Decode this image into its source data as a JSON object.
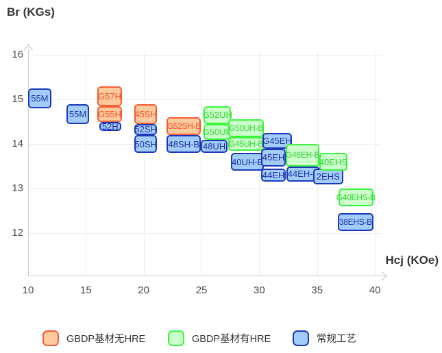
{
  "axis": {
    "y_title": "Br (KGs)",
    "x_title": "Hcj (KOe)"
  },
  "legend": {
    "items": [
      {
        "label": "GBDP基材无HRE",
        "series": "gbdp_no_hre"
      },
      {
        "label": "GBDP基材有HRE",
        "series": "gbdp_hre"
      },
      {
        "label": "常规工艺",
        "series": "conventional"
      }
    ]
  },
  "chart_data": {
    "type": "scatter",
    "title": "",
    "xlabel": "Hcj (KOe)",
    "ylabel": "Br (KGs)",
    "xlim": [
      10,
      41
    ],
    "ylim": [
      12,
      16
    ],
    "x_ticks": [
      10,
      15,
      20,
      25,
      30,
      35,
      40
    ],
    "y_ticks": [
      16,
      15,
      14,
      13,
      12
    ],
    "grid": true,
    "legend_position": "bottom",
    "series": [
      {
        "id": "gbdp_no_hre",
        "name": "GBDP基材无HRE",
        "fill": "#fbcb9d",
        "border": "#f75c35",
        "text": "#f94f27"
      },
      {
        "id": "gbdp_hre",
        "name": "GBDP基材有HRE",
        "fill": "#ccffcc",
        "border": "#3df43d",
        "text": "#2fd42f"
      },
      {
        "id": "conventional",
        "name": "常规工艺",
        "fill": "#a2cdfb",
        "border": "#1b38bd",
        "text": "#1e2e9e"
      }
    ],
    "boxes": [
      {
        "label": "55M",
        "series": "conventional",
        "hcj": [
          10.0,
          12.0
        ],
        "br": [
          14.8,
          15.25
        ]
      },
      {
        "label": "55M",
        "series": "conventional",
        "hcj": [
          13.3,
          15.3
        ],
        "br": [
          14.45,
          14.9
        ]
      },
      {
        "label": "G57H",
        "series": "gbdp_no_hre",
        "hcj": [
          16.0,
          18.1
        ],
        "br": [
          14.85,
          15.3
        ]
      },
      {
        "label": "G55H",
        "series": "gbdp_no_hre",
        "hcj": [
          16.0,
          18.1
        ],
        "br": [
          14.5,
          14.85
        ]
      },
      {
        "label": "52H",
        "series": "conventional",
        "hcj": [
          16.15,
          18.05
        ],
        "br": [
          14.3,
          14.5
        ]
      },
      {
        "label": "45SH",
        "series": "gbdp_no_hre",
        "hcj": [
          19.2,
          21.15
        ],
        "br": [
          14.45,
          14.9
        ]
      },
      {
        "label": "52SH",
        "series": "conventional",
        "hcj": [
          19.2,
          21.15
        ],
        "br": [
          14.2,
          14.45
        ]
      },
      {
        "label": "50SH",
        "series": "conventional",
        "hcj": [
          19.2,
          21.15
        ],
        "br": [
          13.8,
          14.2
        ]
      },
      {
        "label": "G52SH-B",
        "series": "gbdp_no_hre",
        "hcj": [
          22.0,
          24.95
        ],
        "br": [
          14.2,
          14.6
        ]
      },
      {
        "label": "48SH-B",
        "series": "conventional",
        "hcj": [
          22.0,
          24.95
        ],
        "br": [
          13.8,
          14.2
        ]
      },
      {
        "label": "G52UH",
        "series": "gbdp_hre",
        "hcj": [
          25.2,
          27.55
        ],
        "br": [
          14.45,
          14.85
        ]
      },
      {
        "label": "G50UH",
        "series": "gbdp_hre",
        "hcj": [
          25.2,
          27.55
        ],
        "br": [
          14.1,
          14.45
        ]
      },
      {
        "label": "48UH",
        "series": "conventional",
        "hcj": [
          24.95,
          27.25
        ],
        "br": [
          13.8,
          14.1
        ]
      },
      {
        "label": "G50UH-B",
        "series": "gbdp_hre",
        "hcj": [
          27.3,
          30.4
        ],
        "br": [
          14.15,
          14.55
        ]
      },
      {
        "label": "G45UH-B",
        "series": "gbdp_hre",
        "hcj": [
          27.3,
          30.4
        ],
        "br": [
          13.85,
          14.15
        ]
      },
      {
        "label": "40UH-B",
        "series": "conventional",
        "hcj": [
          27.55,
          30.4
        ],
        "br": [
          13.4,
          13.8
        ]
      },
      {
        "label": "G45EH",
        "series": "conventional",
        "hcj": [
          30.3,
          32.8
        ],
        "br": [
          13.9,
          14.25
        ]
      },
      {
        "label": "45EH",
        "series": "conventional",
        "hcj": [
          30.15,
          32.3
        ],
        "br": [
          13.5,
          13.9
        ]
      },
      {
        "label": "44EH",
        "series": "conventional",
        "hcj": [
          30.15,
          32.3
        ],
        "br": [
          13.15,
          13.45
        ]
      },
      {
        "label": "G46EH-B",
        "series": "gbdp_hre",
        "hcj": [
          32.3,
          35.2
        ],
        "br": [
          13.5,
          14.0
        ]
      },
      {
        "label": "44EH-B",
        "series": "conventional",
        "hcj": [
          32.35,
          35.25
        ],
        "br": [
          13.15,
          13.5
        ]
      },
      {
        "label": "2EHS",
        "series": "conventional",
        "hcj": [
          34.65,
          37.25
        ],
        "br": [
          13.1,
          13.45
        ]
      },
      {
        "label": "40EHS",
        "series": "gbdp_hre",
        "hcj": [
          35.2,
          37.6
        ],
        "br": [
          13.4,
          13.8
        ]
      },
      {
        "label": "G40EHS-B",
        "series": "gbdp_hre",
        "hcj": [
          36.85,
          39.85
        ],
        "br": [
          12.6,
          13.0
        ]
      },
      {
        "label": "38EHS-B",
        "series": "conventional",
        "hcj": [
          36.8,
          39.85
        ],
        "br": [
          12.05,
          12.45
        ]
      }
    ]
  }
}
